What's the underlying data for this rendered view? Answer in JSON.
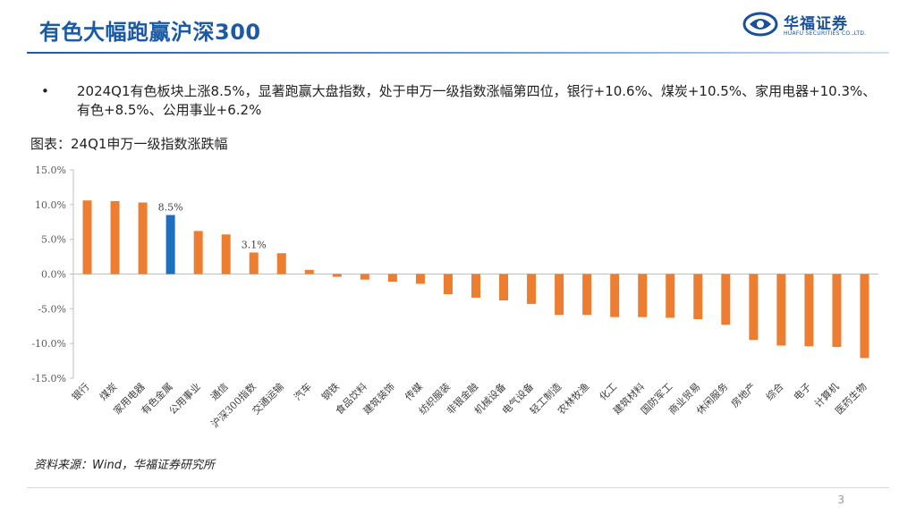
{
  "header": {
    "title": "有色大幅跑赢沪深300",
    "logo_cn": "华福证券",
    "logo_en": "HUAFU SECURITIES CO.,LTD."
  },
  "bullet": {
    "dot": "•",
    "text": "2024Q1有色板块上涨8.5%，显著跑赢大盘指数，处于申万一级指数涨幅第四位，银行+10.6%、煤炭+10.5%、家用电器+10.3%、有色+8.5%、公用事业+6.2%"
  },
  "caption": "图表：24Q1申万一级指数涨跌幅",
  "source": "资料来源：Wind，华福证券研究所",
  "page_number": "3",
  "colors": {
    "accent": "#1a5aa6",
    "bar": "#ed7d31",
    "highlight": "#1f6fbf"
  },
  "chart_data": {
    "type": "bar",
    "categories": [
      "银行",
      "煤炭",
      "家用电器",
      "有色金属",
      "公用事业",
      "通信",
      "沪深300指数",
      "交通运输",
      "汽车",
      "钢铁",
      "食品饮料",
      "建筑装饰",
      "传媒",
      "纺织服装",
      "非银金融",
      "机械设备",
      "电气设备",
      "轻工制造",
      "农林牧渔",
      "化工",
      "建筑材料",
      "国防军工",
      "商业贸易",
      "休闲服务",
      "房地产",
      "综合",
      "电子",
      "计算机",
      "医药生物"
    ],
    "values": [
      10.6,
      10.5,
      10.3,
      8.5,
      6.2,
      5.7,
      3.1,
      3.0,
      0.6,
      -0.4,
      -0.8,
      -1.1,
      -1.4,
      -2.9,
      -3.4,
      -3.8,
      -4.3,
      -5.9,
      -5.9,
      -6.2,
      -6.2,
      -6.3,
      -6.5,
      -7.3,
      -9.5,
      -10.3,
      -10.4,
      -10.5,
      -12.1
    ],
    "highlight": [
      "有色金属"
    ],
    "data_labels": [
      {
        "category": "有色金属",
        "text": "8.5%"
      },
      {
        "category": "沪深300指数",
        "text": "3.1%"
      }
    ],
    "y_ticks": [
      "15.0%",
      "10.0%",
      "5.0%",
      "0.0%",
      "-5.0%",
      "-10.0%",
      "-15.0%"
    ],
    "ylim": [
      -15,
      15
    ],
    "grid": false
  }
}
